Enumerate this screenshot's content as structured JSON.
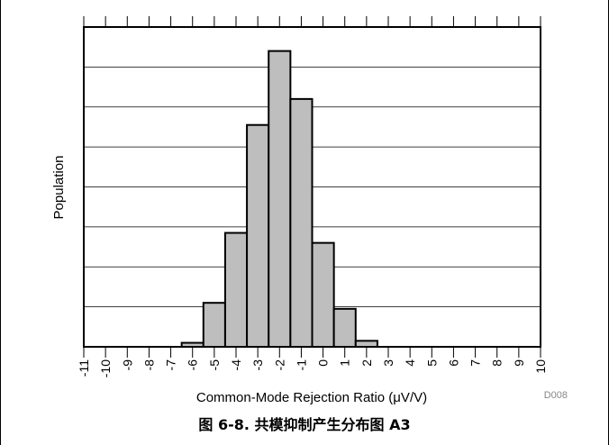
{
  "chart_data": {
    "type": "bar",
    "title": "",
    "xlabel": "Common-Mode Rejection Ratio (μV/V)",
    "ylabel": "Population",
    "figure_id": "D008",
    "x_ticks": [
      "-11",
      "-10",
      "-9",
      "-8",
      "-7",
      "-6",
      "-5",
      "-4",
      "-3",
      "-2",
      "-1",
      "0",
      "1",
      "2",
      "3",
      "4",
      "5",
      "6",
      "7",
      "8",
      "9",
      "10"
    ],
    "bins": [
      {
        "start": -6.5,
        "end": -5.5,
        "value": 1
      },
      {
        "start": -5.5,
        "end": -4.5,
        "value": 11
      },
      {
        "start": -4.5,
        "end": -3.5,
        "value": 28.5
      },
      {
        "start": -3.5,
        "end": -2.5,
        "value": 55.5
      },
      {
        "start": -2.5,
        "end": -1.5,
        "value": 74
      },
      {
        "start": -1.5,
        "end": -0.5,
        "value": 62
      },
      {
        "start": -0.5,
        "end": 0.5,
        "value": 26
      },
      {
        "start": 0.5,
        "end": 1.5,
        "value": 9.5
      },
      {
        "start": 1.5,
        "end": 2.5,
        "value": 1.5
      }
    ],
    "xlim": [
      -11,
      10
    ],
    "ylim": [
      0,
      80
    ],
    "y_gridlines": 8,
    "grid": true,
    "bar_color": "#bebebe",
    "bar_edge_color": "#000000"
  },
  "caption": "图 6-8. 共模抑制产生分布图 A3"
}
